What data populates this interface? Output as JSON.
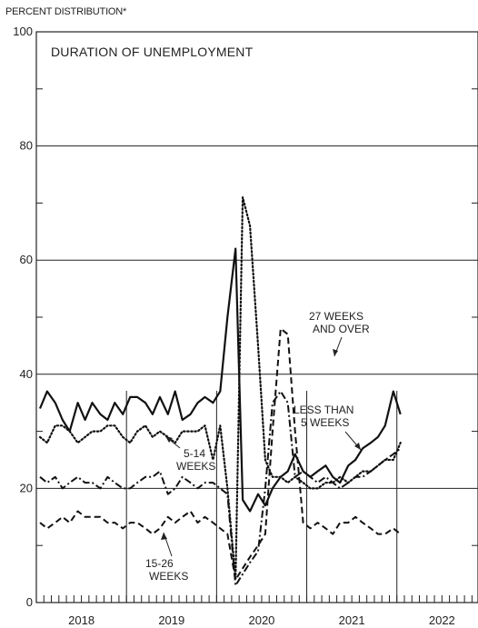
{
  "chart_data": {
    "type": "line",
    "title": "DURATION OF UNEMPLOYMENT",
    "ylabel": "PERCENT DISTRIBUTION*",
    "ylim": [
      0,
      100
    ],
    "yticks": [
      0,
      20,
      40,
      60,
      80,
      100
    ],
    "xlim": [
      2018.0,
      2022.9
    ],
    "xticks": [
      {
        "label": "2018",
        "x": 2018.5
      },
      {
        "label": "2019",
        "x": 2019.5
      },
      {
        "label": "2020",
        "x": 2020.5
      },
      {
        "label": "2021",
        "x": 2021.5
      },
      {
        "label": "2022",
        "x": 2022.5
      }
    ],
    "vlines": [
      2019,
      2020,
      2021,
      2022
    ],
    "grid": "horizontal at 20, 40, 60, 80; minor ticks monthly",
    "series": [
      {
        "name": "LESS THAN 5 WEEKS",
        "style": "solid",
        "x": [
          2018.04,
          2018.12,
          2018.21,
          2018.29,
          2018.37,
          2018.46,
          2018.54,
          2018.62,
          2018.71,
          2018.79,
          2018.87,
          2018.96,
          2019.04,
          2019.12,
          2019.21,
          2019.29,
          2019.37,
          2019.46,
          2019.54,
          2019.62,
          2019.71,
          2019.79,
          2019.87,
          2019.96,
          2020.04,
          2020.12,
          2020.21,
          2020.29,
          2020.37,
          2020.46,
          2020.54,
          2020.62,
          2020.71,
          2020.79,
          2020.87,
          2020.96,
          2021.04,
          2021.12,
          2021.21,
          2021.29,
          2021.37,
          2021.46,
          2021.54,
          2021.62,
          2021.71,
          2021.79,
          2021.87,
          2021.96,
          2022.04,
          2022.12
        ],
        "values": [
          34,
          37,
          35,
          32,
          30,
          35,
          32,
          35,
          33,
          32,
          35,
          33,
          36,
          36,
          35,
          33,
          36,
          33,
          37,
          32,
          33,
          35,
          36,
          35,
          37,
          50,
          62,
          18,
          16,
          19,
          17,
          20,
          22,
          23,
          26,
          23,
          22,
          23,
          24,
          22,
          21,
          24,
          25,
          27,
          28,
          29,
          31,
          37,
          33,
          null
        ]
      },
      {
        "name": "5-14 WEEKS",
        "style": "dotted",
        "x": [
          2018.04,
          2018.12,
          2018.21,
          2018.29,
          2018.37,
          2018.46,
          2018.54,
          2018.62,
          2018.71,
          2018.79,
          2018.87,
          2018.96,
          2019.04,
          2019.12,
          2019.21,
          2019.29,
          2019.37,
          2019.46,
          2019.54,
          2019.62,
          2019.71,
          2019.79,
          2019.87,
          2019.96,
          2020.04,
          2020.12,
          2020.21,
          2020.29,
          2020.37,
          2020.46,
          2020.54,
          2020.62,
          2020.71,
          2020.79,
          2020.87,
          2020.96,
          2021.04,
          2021.12,
          2021.21,
          2021.29,
          2021.37,
          2021.46,
          2021.54,
          2021.62,
          2021.71,
          2021.79,
          2021.87,
          2021.96,
          2022.04,
          2022.12
        ],
        "values": [
          29,
          28,
          31,
          31,
          30,
          28,
          29,
          30,
          30,
          31,
          31,
          29,
          28,
          30,
          31,
          29,
          30,
          29,
          28,
          30,
          30,
          30,
          31,
          25,
          31,
          20,
          4,
          71,
          66,
          45,
          25,
          22,
          22,
          21,
          22,
          21,
          20,
          20,
          21,
          21,
          22,
          21,
          22,
          23,
          23,
          24,
          25,
          25,
          28,
          null
        ]
      },
      {
        "name": "15-26 WEEKS",
        "style": "dash-dot",
        "x": [
          2018.04,
          2018.12,
          2018.21,
          2018.29,
          2018.37,
          2018.46,
          2018.54,
          2018.62,
          2018.71,
          2018.79,
          2018.87,
          2018.96,
          2019.04,
          2019.12,
          2019.21,
          2019.29,
          2019.37,
          2019.46,
          2019.54,
          2019.62,
          2019.71,
          2019.79,
          2019.87,
          2019.96,
          2020.04,
          2020.12,
          2020.21,
          2020.29,
          2020.37,
          2020.46,
          2020.54,
          2020.62,
          2020.71,
          2020.79,
          2020.87,
          2020.96,
          2021.04,
          2021.12,
          2021.21,
          2021.29,
          2021.37,
          2021.46,
          2021.54,
          2021.62,
          2021.71,
          2021.79,
          2021.87,
          2021.96,
          2022.04,
          2022.12
        ],
        "values": [
          22,
          21,
          22,
          20,
          21,
          22,
          21,
          21,
          20,
          22,
          21,
          20,
          20,
          21,
          22,
          22,
          23,
          19,
          20,
          22,
          21,
          20,
          21,
          21,
          20,
          19,
          3,
          5,
          7,
          9,
          20,
          35,
          37,
          35,
          22,
          23,
          22,
          21,
          22,
          21,
          20,
          21,
          22,
          22,
          23,
          24,
          25,
          26,
          27,
          null
        ]
      },
      {
        "name": "27 WEEKS AND OVER",
        "style": "dashed",
        "x": [
          2018.04,
          2018.12,
          2018.21,
          2018.29,
          2018.37,
          2018.46,
          2018.54,
          2018.62,
          2018.71,
          2018.79,
          2018.87,
          2018.96,
          2019.04,
          2019.12,
          2019.21,
          2019.29,
          2019.37,
          2019.46,
          2019.54,
          2019.62,
          2019.71,
          2019.79,
          2019.87,
          2019.96,
          2020.04,
          2020.12,
          2020.21,
          2020.29,
          2020.37,
          2020.46,
          2020.54,
          2020.62,
          2020.71,
          2020.79,
          2020.87,
          2020.96,
          2021.04,
          2021.12,
          2021.21,
          2021.29,
          2021.37,
          2021.46,
          2021.54,
          2021.62,
          2021.71,
          2021.79,
          2021.87,
          2021.96,
          2022.04,
          2022.12
        ],
        "values": [
          14,
          13,
          14,
          15,
          14,
          16,
          15,
          15,
          15,
          14,
          14,
          13,
          14,
          14,
          13,
          12,
          13,
          15,
          14,
          15,
          16,
          14,
          15,
          14,
          13,
          12,
          4,
          6,
          8,
          10,
          12,
          30,
          48,
          47,
          30,
          14,
          13,
          14,
          13,
          12,
          14,
          14,
          15,
          14,
          13,
          12,
          12,
          13,
          12,
          null
        ]
      }
    ],
    "annotations": [
      {
        "lines": [
          "27 WEEKS",
          "AND OVER"
        ]
      },
      {
        "lines": [
          "LESS THAN",
          "5 WEEKS"
        ]
      },
      {
        "lines": [
          "5-14",
          "WEEKS"
        ]
      },
      {
        "lines": [
          "15-26",
          "WEEKS"
        ]
      }
    ]
  }
}
